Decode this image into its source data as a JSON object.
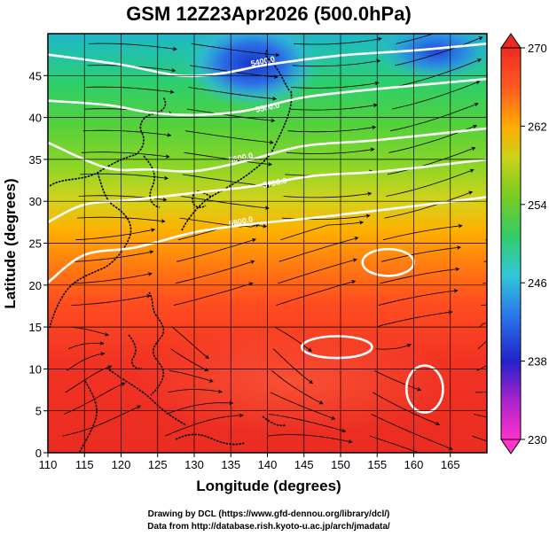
{
  "chart_data": {
    "type": "heatmap",
    "title": "GSM 12Z23Apr2026 (500.0hPa)",
    "xlabel": "Longitude (degrees)",
    "ylabel": "Latitude  (degrees)",
    "xlim": [
      110,
      170
    ],
    "ylim": [
      0,
      50
    ],
    "xticks": [
      110,
      115,
      120,
      125,
      130,
      135,
      140,
      145,
      150,
      155,
      160,
      165
    ],
    "yticks": [
      0,
      5,
      10,
      15,
      20,
      25,
      30,
      35,
      40,
      45
    ],
    "grid": true,
    "variable": "temperature (K) with streamlines and geopotential height contours",
    "colorbar": {
      "min": 230,
      "max": 270,
      "ticks": [
        230,
        238,
        246,
        254,
        262,
        270
      ],
      "colors": [
        "#ff66cc",
        "#cc33cc",
        "#2233cc",
        "#3399ff",
        "#33cccc",
        "#33cc66",
        "#66cc33",
        "#bbdd22",
        "#ffcc00",
        "#ff8800",
        "#ff4422",
        "#ee2222"
      ]
    },
    "height_contours": [
      {
        "label": "5400.0",
        "points": [
          [
            110,
            47.5
          ],
          [
            120,
            46.3
          ],
          [
            128,
            45.0
          ],
          [
            134,
            45.3
          ],
          [
            140,
            46.3
          ],
          [
            150,
            47.4
          ],
          [
            160,
            48.0
          ],
          [
            170,
            48.8
          ]
        ]
      },
      {
        "label": "5500.0",
        "points": [
          [
            110,
            42.0
          ],
          [
            118,
            41.5
          ],
          [
            124,
            40.6
          ],
          [
            130,
            40.3
          ],
          [
            137,
            40.8
          ],
          [
            145,
            42.4
          ],
          [
            155,
            43.4
          ],
          [
            170,
            44.6
          ]
        ]
      },
      {
        "label": "5600.0",
        "points": [
          [
            110,
            37.0
          ],
          [
            118,
            34.0
          ],
          [
            124,
            33.8
          ],
          [
            130,
            33.6
          ],
          [
            137,
            34.8
          ],
          [
            145,
            36.6
          ],
          [
            155,
            37.3
          ],
          [
            170,
            38.7
          ]
        ]
      },
      {
        "label": "5700.0",
        "points": [
          [
            110,
            27.5
          ],
          [
            115,
            29.6
          ],
          [
            122,
            30.2
          ],
          [
            130,
            31.0
          ],
          [
            138,
            31.8
          ],
          [
            146,
            33.0
          ],
          [
            156,
            33.6
          ],
          [
            170,
            35.0
          ]
        ]
      },
      {
        "label": "5800.0",
        "points": [
          [
            110,
            20.3
          ],
          [
            115,
            23.6
          ],
          [
            122,
            24.5
          ],
          [
            130,
            26.3
          ],
          [
            137,
            27.2
          ],
          [
            146,
            28.0
          ],
          [
            156,
            29.0
          ],
          [
            170,
            30.5
          ]
        ]
      }
    ],
    "closed_highs": [
      {
        "center": [
          156.5,
          22.7
        ],
        "radius_deg": [
          3.5,
          1.6
        ]
      },
      {
        "center": [
          149.5,
          12.6
        ],
        "radius_deg": [
          4.8,
          1.3
        ]
      },
      {
        "center": [
          161.5,
          7.6
        ],
        "radius_deg": [
          2.5,
          2.8
        ]
      }
    ],
    "credits": [
      "Drawing by DCL (https://www.gfd-dennou.org/library/dcl/)",
      "Data from http://database.rish.kyoto-u.ac.jp/arch/jmadata/"
    ]
  }
}
